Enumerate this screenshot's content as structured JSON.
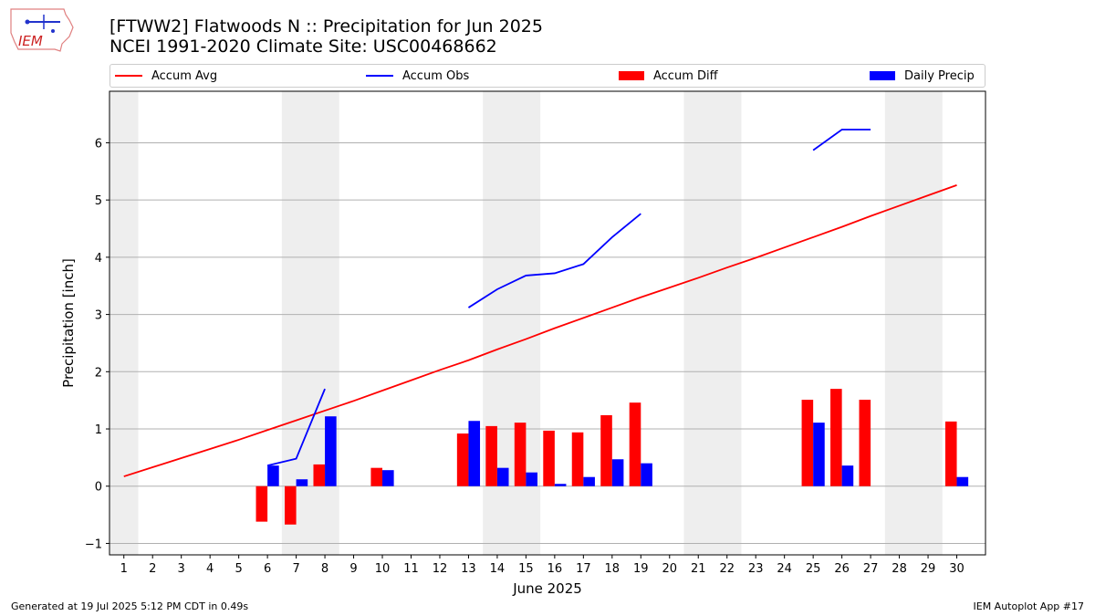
{
  "header": {
    "title_line1": "[FTWW2] Flatwoods N :: Precipitation for Jun 2025",
    "title_line2": "NCEI 1991-2020 Climate Site: USC00468662",
    "logo_text": "IEM"
  },
  "legend": {
    "items": [
      {
        "label": "Accum Avg",
        "color": "#ff0000",
        "kind": "line"
      },
      {
        "label": "Accum Obs",
        "color": "#0000ff",
        "kind": "line"
      },
      {
        "label": "Accum Diff",
        "color": "#ff0000",
        "kind": "bar"
      },
      {
        "label": "Daily Precip",
        "color": "#0000ff",
        "kind": "bar"
      }
    ]
  },
  "footer": {
    "generated": "Generated at 19 Jul 2025 5:12 PM CDT in 0.49s",
    "app": "IEM Autoplot App #17"
  },
  "chart_data": {
    "type": "bar",
    "title": "[FTWW2] Flatwoods N :: Precipitation for Jun 2025",
    "xlabel": "June 2025",
    "ylabel": "Precipitation [inch]",
    "ylim": [
      -1.2,
      6.9
    ],
    "xlim": [
      0.5,
      31.0
    ],
    "yticks": [
      -1,
      0,
      1,
      2,
      3,
      4,
      5,
      6
    ],
    "categories": [
      "1",
      "2",
      "3",
      "4",
      "5",
      "6",
      "7",
      "8",
      "9",
      "10",
      "11",
      "12",
      "13",
      "14",
      "15",
      "16",
      "17",
      "18",
      "19",
      "20",
      "21",
      "22",
      "23",
      "24",
      "25",
      "26",
      "27",
      "28",
      "29",
      "30"
    ],
    "grid": "horizontal",
    "weekend_shading": [
      [
        0.5,
        1.5
      ],
      [
        6.5,
        8.5
      ],
      [
        13.5,
        15.5
      ],
      [
        20.5,
        22.5
      ],
      [
        27.5,
        29.5
      ]
    ],
    "series": [
      {
        "name": "Accum Avg",
        "type": "line",
        "color": "#ff0000",
        "values": [
          0.17,
          0.33,
          0.49,
          0.65,
          0.81,
          0.98,
          1.15,
          1.32,
          1.49,
          1.67,
          1.85,
          2.03,
          2.2,
          2.39,
          2.57,
          2.76,
          2.94,
          3.12,
          3.3,
          3.47,
          3.64,
          3.82,
          3.99,
          4.17,
          4.35,
          4.53,
          4.72,
          4.9,
          5.08,
          5.26
        ]
      },
      {
        "name": "Accum Obs",
        "type": "line",
        "color": "#0000ff",
        "values": [
          null,
          null,
          null,
          null,
          null,
          0.36,
          0.48,
          1.7,
          null,
          null,
          null,
          null,
          3.12,
          3.44,
          3.68,
          3.72,
          3.88,
          4.35,
          4.76,
          null,
          null,
          null,
          null,
          null,
          5.87,
          6.23,
          6.23,
          null,
          null,
          null
        ]
      },
      {
        "name": "Accum Diff",
        "type": "bar",
        "color": "#ff0000",
        "values": [
          null,
          null,
          null,
          null,
          null,
          -0.62,
          -0.67,
          0.38,
          null,
          0.32,
          null,
          null,
          0.92,
          1.05,
          1.11,
          0.97,
          0.94,
          1.24,
          1.46,
          null,
          null,
          null,
          null,
          null,
          1.51,
          1.7,
          1.51,
          null,
          null,
          1.13
        ]
      },
      {
        "name": "Daily Precip",
        "type": "bar",
        "color": "#0000ff",
        "values": [
          null,
          null,
          null,
          null,
          null,
          0.36,
          0.12,
          1.22,
          null,
          0.28,
          null,
          null,
          1.14,
          0.32,
          0.24,
          0.04,
          0.16,
          0.47,
          0.4,
          null,
          null,
          null,
          null,
          null,
          1.11,
          0.36,
          null,
          null,
          null,
          0.16
        ]
      }
    ]
  }
}
